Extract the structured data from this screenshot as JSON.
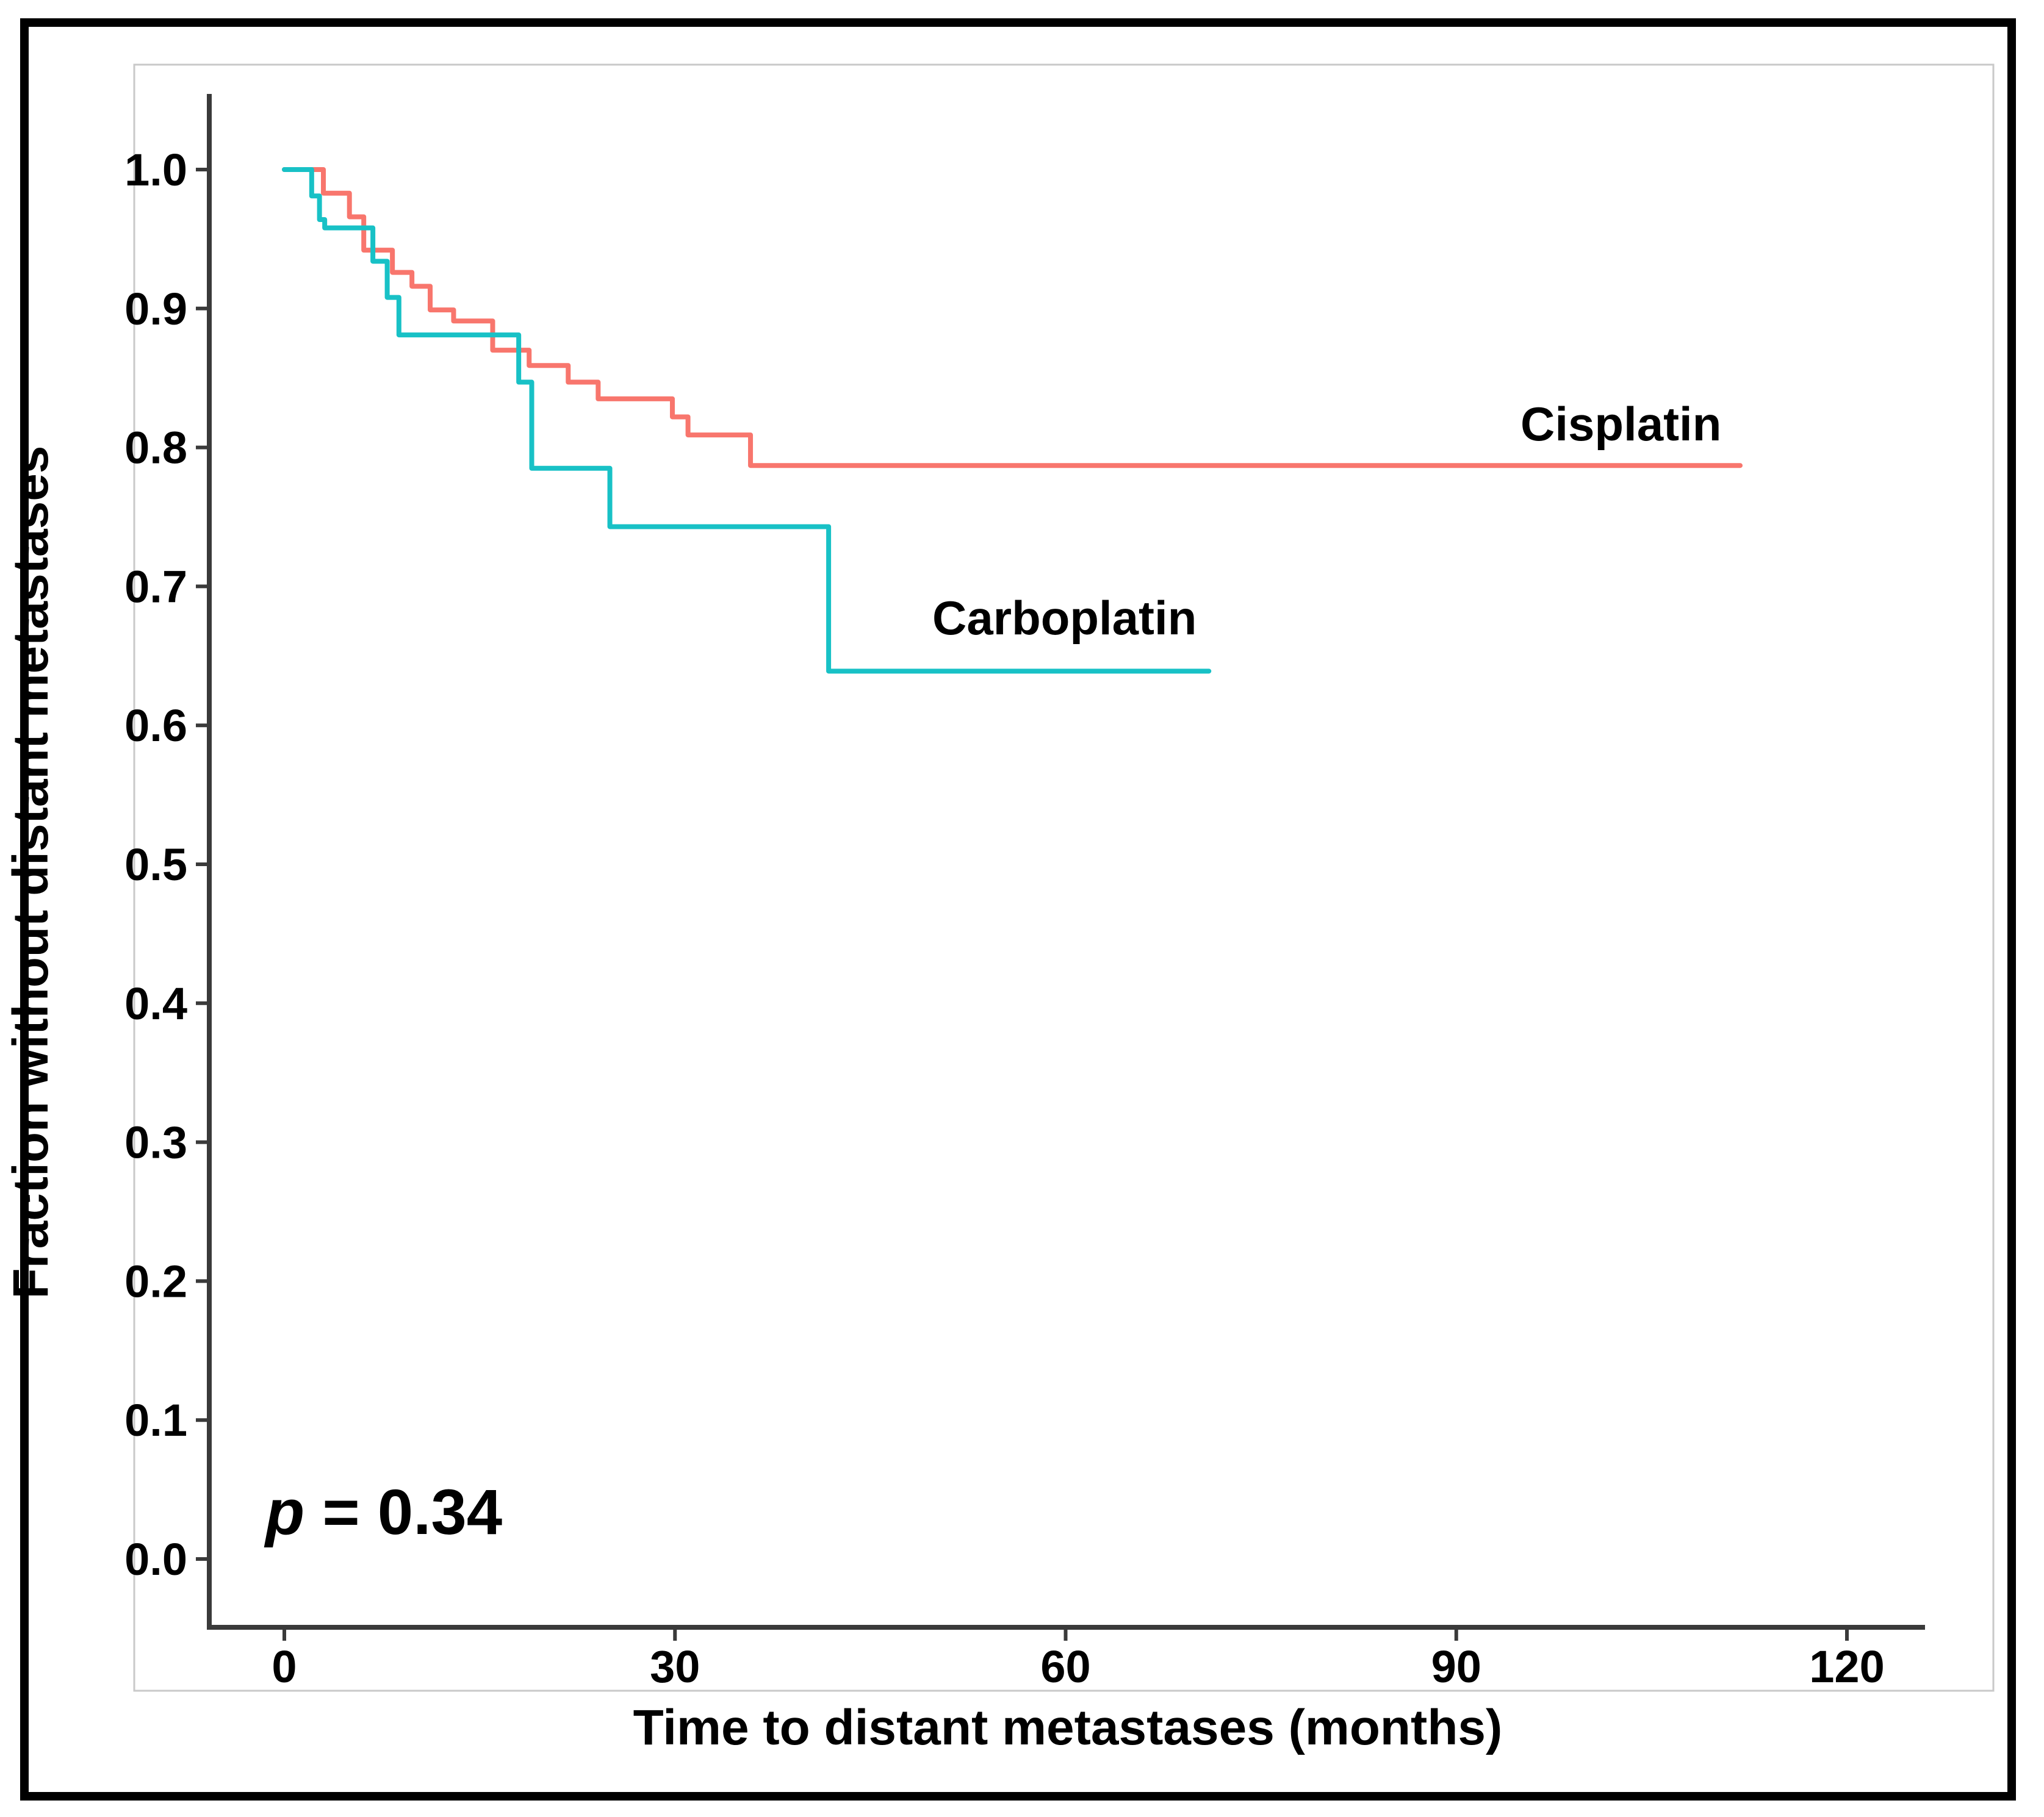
{
  "chart_data": {
    "type": "line",
    "subtype": "kaplan-meier-step",
    "title": "",
    "xlabel": "Time to distant metastases (months)",
    "ylabel": "Fraction without distant metastases",
    "xlim": [
      0,
      120
    ],
    "ylim": [
      0.0,
      1.0
    ],
    "x_ticks": [
      0,
      30,
      60,
      90,
      120
    ],
    "x_tick_labels": [
      "0",
      "30",
      "60",
      "90",
      "120"
    ],
    "y_ticks": [
      1.0,
      0.9,
      0.8,
      0.7,
      0.6,
      0.5,
      0.4,
      0.3,
      0.2,
      0.1,
      0.0
    ],
    "y_tick_labels": [
      "1.0",
      "0.9",
      "0.8",
      "0.7",
      "0.6",
      "0.5",
      "0.4",
      "0.3",
      "0.2",
      "0.1",
      "0.0"
    ],
    "grid": false,
    "legend_position": "inline-labels",
    "annotation": {
      "p_italic": "p",
      "p_rest": " = 0.34"
    },
    "series": [
      {
        "name": "Cisplatin",
        "color": "#f8766d",
        "end_time": 111.8,
        "steps": [
          [
            0,
            1.0
          ],
          [
            3.0,
            0.983
          ],
          [
            5.0,
            0.966
          ],
          [
            6.1,
            0.942
          ],
          [
            8.3,
            0.926
          ],
          [
            9.8,
            0.916
          ],
          [
            11.2,
            0.899
          ],
          [
            13.0,
            0.891
          ],
          [
            16.0,
            0.87
          ],
          [
            18.8,
            0.859
          ],
          [
            21.8,
            0.847
          ],
          [
            24.1,
            0.835
          ],
          [
            29.8,
            0.822
          ],
          [
            31.0,
            0.809
          ],
          [
            35.8,
            0.787
          ]
        ]
      },
      {
        "name": "Carboplatin",
        "color": "#18c1c6",
        "end_time": 71.0,
        "steps": [
          [
            0,
            1.0
          ],
          [
            2.1,
            0.981
          ],
          [
            2.7,
            0.964
          ],
          [
            3.1,
            0.958
          ],
          [
            6.8,
            0.934
          ],
          [
            7.9,
            0.908
          ],
          [
            8.8,
            0.881
          ],
          [
            18.0,
            0.847
          ],
          [
            19.0,
            0.785
          ],
          [
            25.0,
            0.743
          ],
          [
            41.8,
            0.639
          ]
        ]
      }
    ]
  },
  "styles": {
    "axis_color": "#3a3a3a",
    "panel_border_color": "#c9c9c9",
    "frame_color": "#000000",
    "text_color": "#000000"
  }
}
